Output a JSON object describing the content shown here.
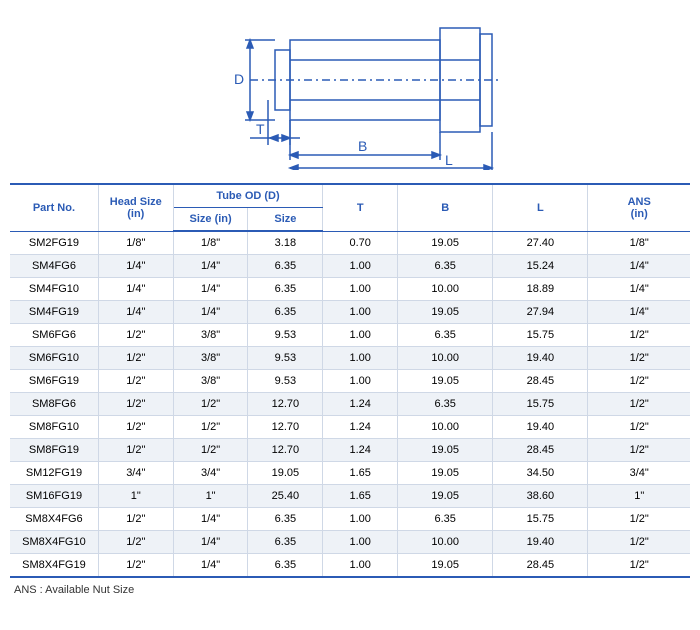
{
  "diagram": {
    "stroke": "#2b5bb5",
    "labels": {
      "D": "D",
      "T": "T",
      "B": "B",
      "L": "L"
    }
  },
  "table": {
    "header_color": "#2b5bb5",
    "border_color": "#2b5bb5",
    "row_border": "#cfd8e6",
    "alt_bg": "#eef2f7",
    "columns": {
      "part_no": "Part No.",
      "head_size": "Head Size",
      "head_size_unit": "(in)",
      "tube_od": "Tube OD (D)",
      "size_in": "Size (in)",
      "size": "Size",
      "t": "T",
      "b": "B",
      "l": "L",
      "ans": "ANS",
      "ans_unit": "(in)"
    },
    "rows": [
      {
        "pn": "SM2FG19",
        "hs": "1/8\"",
        "sin": "1/8\"",
        "sz": "3.18",
        "t": "0.70",
        "b": "19.05",
        "l": "27.40",
        "ans": "1/8\""
      },
      {
        "pn": "SM4FG6",
        "hs": "1/4\"",
        "sin": "1/4\"",
        "sz": "6.35",
        "t": "1.00",
        "b": "6.35",
        "l": "15.24",
        "ans": "1/4\""
      },
      {
        "pn": "SM4FG10",
        "hs": "1/4\"",
        "sin": "1/4\"",
        "sz": "6.35",
        "t": "1.00",
        "b": "10.00",
        "l": "18.89",
        "ans": "1/4\""
      },
      {
        "pn": "SM4FG19",
        "hs": "1/4\"",
        "sin": "1/4\"",
        "sz": "6.35",
        "t": "1.00",
        "b": "19.05",
        "l": "27.94",
        "ans": "1/4\""
      },
      {
        "pn": "SM6FG6",
        "hs": "1/2\"",
        "sin": "3/8\"",
        "sz": "9.53",
        "t": "1.00",
        "b": "6.35",
        "l": "15.75",
        "ans": "1/2\""
      },
      {
        "pn": "SM6FG10",
        "hs": "1/2\"",
        "sin": "3/8\"",
        "sz": "9.53",
        "t": "1.00",
        "b": "10.00",
        "l": "19.40",
        "ans": "1/2\""
      },
      {
        "pn": "SM6FG19",
        "hs": "1/2\"",
        "sin": "3/8\"",
        "sz": "9.53",
        "t": "1.00",
        "b": "19.05",
        "l": "28.45",
        "ans": "1/2\""
      },
      {
        "pn": "SM8FG6",
        "hs": "1/2\"",
        "sin": "1/2\"",
        "sz": "12.70",
        "t": "1.24",
        "b": "6.35",
        "l": "15.75",
        "ans": "1/2\""
      },
      {
        "pn": "SM8FG10",
        "hs": "1/2\"",
        "sin": "1/2\"",
        "sz": "12.70",
        "t": "1.24",
        "b": "10.00",
        "l": "19.40",
        "ans": "1/2\""
      },
      {
        "pn": "SM8FG19",
        "hs": "1/2\"",
        "sin": "1/2\"",
        "sz": "12.70",
        "t": "1.24",
        "b": "19.05",
        "l": "28.45",
        "ans": "1/2\""
      },
      {
        "pn": "SM12FG19",
        "hs": "3/4\"",
        "sin": "3/4\"",
        "sz": "19.05",
        "t": "1.65",
        "b": "19.05",
        "l": "34.50",
        "ans": "3/4\""
      },
      {
        "pn": "SM16FG19",
        "hs": "1\"",
        "sin": "1\"",
        "sz": "25.40",
        "t": "1.65",
        "b": "19.05",
        "l": "38.60",
        "ans": "1\""
      },
      {
        "pn": "SM8X4FG6",
        "hs": "1/2\"",
        "sin": "1/4\"",
        "sz": "6.35",
        "t": "1.00",
        "b": "6.35",
        "l": "15.75",
        "ans": "1/2\""
      },
      {
        "pn": "SM8X4FG10",
        "hs": "1/2\"",
        "sin": "1/4\"",
        "sz": "6.35",
        "t": "1.00",
        "b": "10.00",
        "l": "19.40",
        "ans": "1/2\""
      },
      {
        "pn": "SM8X4FG19",
        "hs": "1/2\"",
        "sin": "1/4\"",
        "sz": "6.35",
        "t": "1.00",
        "b": "19.05",
        "l": "28.45",
        "ans": "1/2\""
      }
    ]
  },
  "footnote": "ANS : Available Nut Size"
}
